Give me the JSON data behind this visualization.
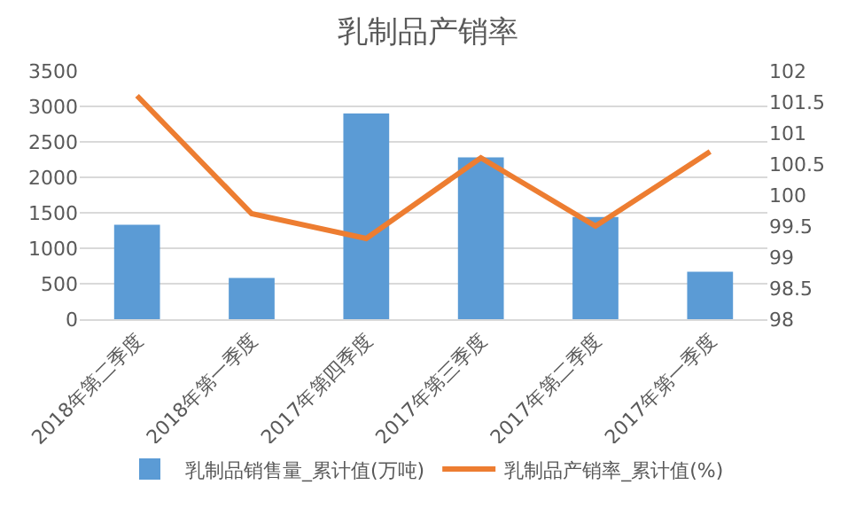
{
  "chart_data": {
    "type": "bar",
    "title": "乳制品产销率",
    "categories": [
      "2018年第二季度",
      "2018年第一季度",
      "2017年第四季度",
      "2017年第三季度",
      "2017年第二季度",
      "2017年第一季度"
    ],
    "series": [
      {
        "name": "乳制品销售量_累计值(万吨)",
        "color": "#5b9bd5",
        "values": [
          1330,
          580,
          2900,
          2280,
          1440,
          670
        ]
      },
      {
        "name": "乳制品产销率_累计值(%)",
        "type": "line",
        "axis": "y2",
        "color": "#ed7d31",
        "values": [
          101.6,
          99.7,
          99.3,
          100.6,
          99.5,
          100.7
        ]
      }
    ],
    "ylim": [
      0,
      3500
    ],
    "yticks": [
      0,
      500,
      1000,
      1500,
      2000,
      2500,
      3000,
      3500
    ],
    "y2lim": [
      98,
      102
    ],
    "y2ticks": [
      98,
      98.5,
      99,
      99.5,
      100,
      100.5,
      101,
      101.5,
      102
    ],
    "grid": "y",
    "legend": "bottom",
    "marker": "none",
    "line_style": "solid"
  }
}
